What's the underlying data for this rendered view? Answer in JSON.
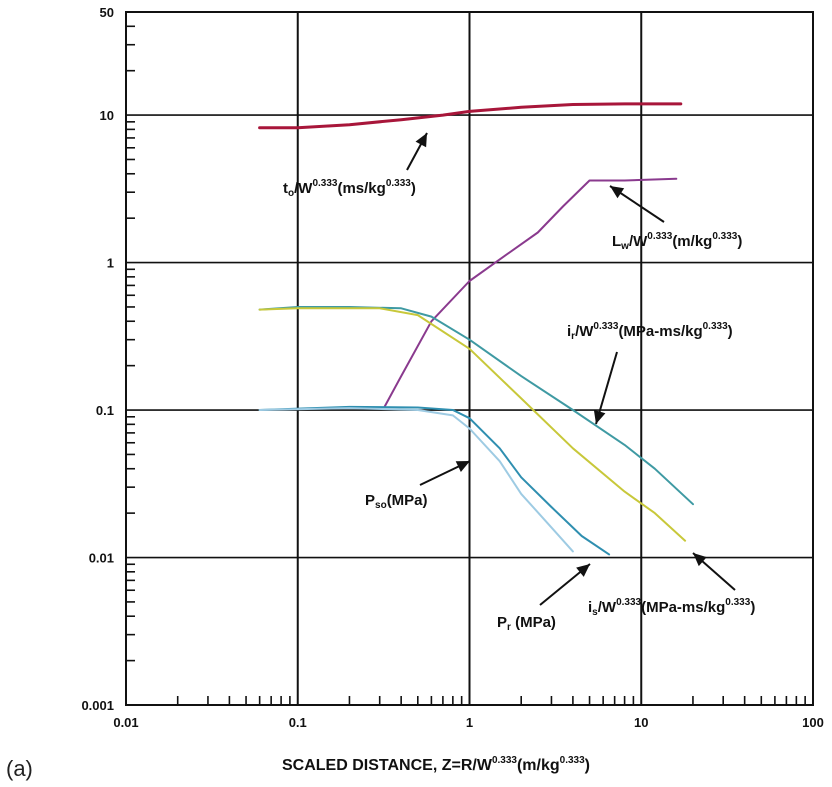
{
  "panel_label": "(a)",
  "chart_data": {
    "type": "line",
    "xscale": "log",
    "yscale": "log",
    "xlim": [
      0.01,
      100
    ],
    "ylim": [
      0.001,
      50
    ],
    "grid": true,
    "xticks": [
      {
        "value": 0.01,
        "label": "0.01"
      },
      {
        "value": 0.1,
        "label": "0.1"
      },
      {
        "value": 1,
        "label": "1"
      },
      {
        "value": 10,
        "label": "10"
      },
      {
        "value": 100,
        "label": "100"
      }
    ],
    "yticks": [
      {
        "value": 0.001,
        "label": "0.001"
      },
      {
        "value": 0.01,
        "label": "0.01"
      },
      {
        "value": 0.1,
        "label": "0.1"
      },
      {
        "value": 1,
        "label": "1"
      },
      {
        "value": 10,
        "label": "10"
      },
      {
        "value": 50,
        "label": "50"
      }
    ],
    "xlabel": "SCALED DISTANCE, Z=R/W^0.333(m/kg^0.333)",
    "series": [
      {
        "name": "t0/W^0.333(ms/kg^0.333)",
        "color": "#a8163a",
        "width": 3,
        "points": [
          [
            0.06,
            8.2
          ],
          [
            0.1,
            8.2
          ],
          [
            0.2,
            8.6
          ],
          [
            0.4,
            9.3
          ],
          [
            0.7,
            10.0
          ],
          [
            1.0,
            10.6
          ],
          [
            2.0,
            11.3
          ],
          [
            4.0,
            11.8
          ],
          [
            8.0,
            11.9
          ],
          [
            17,
            11.9
          ]
        ]
      },
      {
        "name": "Lw/W^0.333(m/kg^0.333)",
        "color": "#8a3a8e",
        "width": 2,
        "points": [
          [
            0.32,
            0.105
          ],
          [
            0.4,
            0.17
          ],
          [
            0.6,
            0.4
          ],
          [
            1.0,
            0.75
          ],
          [
            1.5,
            1.05
          ],
          [
            2.5,
            1.6
          ],
          [
            3.5,
            2.4
          ],
          [
            5.0,
            3.6
          ],
          [
            8.0,
            3.6
          ],
          [
            16,
            3.7
          ]
        ]
      },
      {
        "name": "ir/W^0.333(MPa-ms/kg^0.333)",
        "color": "#3f9aa3",
        "width": 2,
        "points": [
          [
            0.06,
            0.48
          ],
          [
            0.1,
            0.5
          ],
          [
            0.2,
            0.5
          ],
          [
            0.4,
            0.49
          ],
          [
            0.6,
            0.43
          ],
          [
            1.0,
            0.3
          ],
          [
            2.0,
            0.17
          ],
          [
            4.0,
            0.1
          ],
          [
            8.0,
            0.058
          ],
          [
            12,
            0.04
          ],
          [
            20,
            0.023
          ]
        ]
      },
      {
        "name": "is/W^0.333(MPa-ms/kg^0.333)",
        "color": "#c8c83a",
        "width": 2,
        "points": [
          [
            0.06,
            0.48
          ],
          [
            0.1,
            0.49
          ],
          [
            0.3,
            0.49
          ],
          [
            0.5,
            0.44
          ],
          [
            1.0,
            0.26
          ],
          [
            2.0,
            0.12
          ],
          [
            4.0,
            0.055
          ],
          [
            8.0,
            0.028
          ],
          [
            12,
            0.02
          ],
          [
            18,
            0.013
          ]
        ]
      },
      {
        "name": "Pr (MPa)",
        "color": "#2f8fb0",
        "width": 2,
        "points": [
          [
            0.06,
            0.1
          ],
          [
            0.2,
            0.105
          ],
          [
            0.5,
            0.104
          ],
          [
            0.8,
            0.1
          ],
          [
            1.0,
            0.088
          ],
          [
            1.5,
            0.055
          ],
          [
            2.0,
            0.035
          ],
          [
            3.0,
            0.022
          ],
          [
            4.5,
            0.014
          ],
          [
            6.5,
            0.0105
          ]
        ]
      },
      {
        "name": "Pso(MPa)",
        "color": "#9ecbe3",
        "width": 2,
        "points": [
          [
            0.06,
            0.1
          ],
          [
            0.2,
            0.103
          ],
          [
            0.5,
            0.1
          ],
          [
            0.8,
            0.092
          ],
          [
            1.0,
            0.075
          ],
          [
            1.5,
            0.045
          ],
          [
            2.0,
            0.027
          ],
          [
            3.0,
            0.016
          ],
          [
            4.0,
            0.011
          ]
        ]
      }
    ],
    "annotations": [
      {
        "base": "t",
        "base_sub": "o",
        "mid": "/W",
        "sup1": "0.333",
        "tail": "(ms/kg",
        "sup2": "0.333",
        "end": ")"
      },
      {
        "base": "L",
        "base_sub": "w",
        "mid": "/W",
        "sup1": "0.333",
        "tail": "(m/kg",
        "sup2": "0.333",
        "end": ")"
      },
      {
        "base": "i",
        "base_sub": "r",
        "mid": "/W",
        "sup1": "0.333",
        "tail": "(MPa-ms/kg",
        "sup2": "0.333",
        "end": ")"
      },
      {
        "base": "P",
        "base_sub": "so",
        "mid": "(MPa)",
        "sup1": "",
        "tail": "",
        "sup2": "",
        "end": ""
      },
      {
        "base": "P",
        "base_sub": "r",
        "mid": " (MPa)",
        "sup1": "",
        "tail": "",
        "sup2": "",
        "end": ""
      },
      {
        "base": "i",
        "base_sub": "s",
        "mid": "/W",
        "sup1": "0.333",
        "tail": "(MPa-ms/kg",
        "sup2": "0.333",
        "end": ")"
      }
    ],
    "xlabel_parts": {
      "main": "SCALED DISTANCE, Z=R/W",
      "sup1": "0.333",
      "tail": "(m/kg",
      "sup2": "0.333",
      "end": ")"
    }
  }
}
